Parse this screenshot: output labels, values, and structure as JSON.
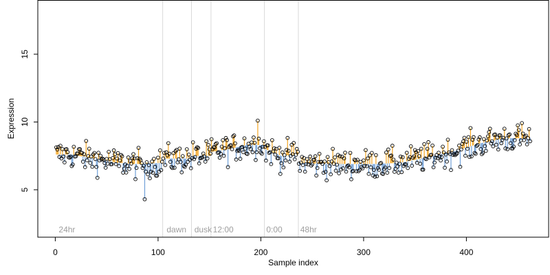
{
  "chart_data": {
    "type": "scatter",
    "xlabel": "Sample index",
    "ylabel": "Expression",
    "xlim": [
      -17,
      480
    ],
    "ylim": [
      1.5,
      19.0
    ],
    "x_ticks": [
      0,
      100,
      200,
      300,
      400
    ],
    "y_ticks": [
      5,
      10,
      15
    ],
    "grid": false,
    "baseline": {
      "description_source": "per-segment smooth reference level; stems connect each point to it",
      "segments": [
        {
          "x": [
            1,
            104
          ],
          "levels": [
            7.6,
            7.6,
            7.4,
            7.2,
            7.0,
            6.9,
            6.9,
            7.0
          ]
        },
        {
          "x": [
            105,
            132
          ],
          "levels": [
            7.3,
            7.3,
            7.3
          ]
        },
        {
          "x": [
            133,
            151
          ],
          "levels": [
            7.5,
            7.5
          ]
        },
        {
          "x": [
            152,
            203
          ],
          "levels": [
            7.8,
            8.0,
            8.3,
            8.3
          ]
        },
        {
          "x": [
            204,
            236
          ],
          "levels": [
            8.0,
            7.5,
            7.6
          ]
        },
        {
          "x": [
            237,
            462
          ],
          "levels": [
            7.0,
            6.9,
            6.9,
            6.9,
            7.0,
            7.4,
            7.8,
            8.4,
            8.8,
            8.8
          ]
        }
      ]
    },
    "group_labels": [
      {
        "label": "24hr",
        "x": 2
      },
      {
        "label": "dawn",
        "x": 107
      },
      {
        "label": "dusk",
        "x": 134
      },
      {
        "label": "12:00",
        "x": 152
      },
      {
        "label": "0:00",
        "x": 204
      },
      {
        "label": "48hr",
        "x": 237
      }
    ],
    "group_boundaries": [
      104.5,
      132.5,
      151.5,
      203.5,
      236.5
    ],
    "series": [
      {
        "values_generated": true,
        "n_points": 462,
        "spread": 0.75,
        "min_marked": {
          "x": 87,
          "y": 4.3
        },
        "max_marked": {
          "x": 197,
          "y": 10.1
        }
      }
    ],
    "colors": {
      "above": "#f5a623",
      "below": "#6f9fd8",
      "point_stroke": "#000000",
      "boundary": "#d9d9d9",
      "group_label": "#9e9e9e"
    }
  }
}
